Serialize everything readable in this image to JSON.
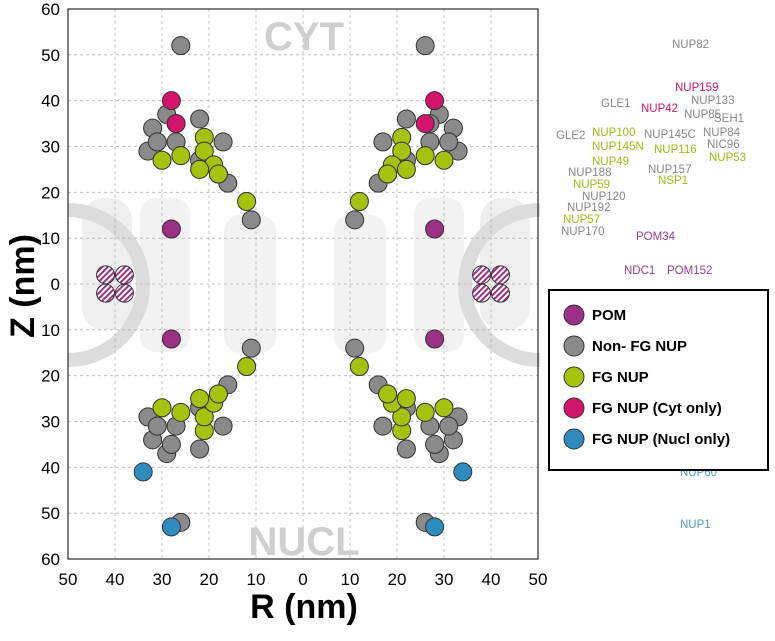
{
  "colors": {
    "pom": "#9c2f86",
    "non_fg": "#8a8a8a",
    "fg": "#a5c20d",
    "fg_cyt": "#d4146c",
    "fg_nucl": "#2e8bbd",
    "label_grey": "#888888",
    "label_green": "#9bbd13",
    "label_pink": "#d4146c",
    "label_purple": "#9c3d8f",
    "label_blue": "#4a9cc9"
  },
  "chart_data": {
    "type": "scatter",
    "xlabel": "R (nm)",
    "ylabel": "Z (nm)",
    "xlim": [
      -50,
      50
    ],
    "ylim": [
      -60,
      60
    ],
    "x_tick_labels": [
      "50",
      "40",
      "30",
      "20",
      "10",
      "0",
      "10",
      "20",
      "30",
      "40",
      "50"
    ],
    "y_tick_labels": [
      "60",
      "50",
      "40",
      "30",
      "20",
      "10",
      "0",
      "10",
      "20",
      "30",
      "40",
      "50",
      "60"
    ],
    "grid": true,
    "annotations": [
      "CYT",
      "NUCL"
    ],
    "series": [
      {
        "name": "POM",
        "color_key": "pom",
        "points": [
          [
            -28,
            12
          ],
          [
            -28,
            -12
          ],
          [
            28,
            12
          ],
          [
            28,
            -12
          ]
        ]
      },
      {
        "name": "Non- FG NUP",
        "color_key": "non_fg",
        "points": [
          [
            -26,
            52
          ],
          [
            -22,
            36
          ],
          [
            -29,
            37
          ],
          [
            -32,
            34
          ],
          [
            -27,
            35
          ],
          [
            -33,
            29
          ],
          [
            -31,
            31
          ],
          [
            -27,
            31
          ],
          [
            -22,
            27
          ],
          [
            -17,
            31
          ],
          [
            -18,
            24
          ],
          [
            -16,
            22
          ],
          [
            -11,
            14
          ],
          [
            -26,
            -52
          ],
          [
            -22,
            -36
          ],
          [
            -29,
            -37
          ],
          [
            -32,
            -34
          ],
          [
            -28,
            -35
          ],
          [
            -33,
            -29
          ],
          [
            -31,
            -31
          ],
          [
            -27,
            -31
          ],
          [
            -22,
            -27
          ],
          [
            -17,
            -31
          ],
          [
            -18,
            -24
          ],
          [
            -16,
            -22
          ],
          [
            -11,
            -14
          ],
          [
            26,
            52
          ],
          [
            22,
            36
          ],
          [
            29,
            37
          ],
          [
            32,
            34
          ],
          [
            27,
            35
          ],
          [
            33,
            29
          ],
          [
            31,
            31
          ],
          [
            27,
            31
          ],
          [
            22,
            27
          ],
          [
            17,
            31
          ],
          [
            18,
            24
          ],
          [
            16,
            22
          ],
          [
            11,
            14
          ],
          [
            26,
            -52
          ],
          [
            22,
            -36
          ],
          [
            29,
            -37
          ],
          [
            32,
            -34
          ],
          [
            28,
            -35
          ],
          [
            33,
            -29
          ],
          [
            31,
            -31
          ],
          [
            27,
            -31
          ],
          [
            22,
            -27
          ],
          [
            17,
            -31
          ],
          [
            18,
            -24
          ],
          [
            16,
            -22
          ],
          [
            11,
            -14
          ]
        ]
      },
      {
        "name": "FG NUP",
        "color_key": "fg",
        "points": [
          [
            -30,
            27
          ],
          [
            -26,
            28
          ],
          [
            -21,
            32
          ],
          [
            -21,
            29
          ],
          [
            -19,
            26
          ],
          [
            -22,
            25
          ],
          [
            -18,
            24
          ],
          [
            -12,
            18
          ],
          [
            -30,
            -27
          ],
          [
            -26,
            -28
          ],
          [
            -21,
            -32
          ],
          [
            -21,
            -29
          ],
          [
            -19,
            -26
          ],
          [
            -22,
            -25
          ],
          [
            -18,
            -24
          ],
          [
            -12,
            -18
          ],
          [
            30,
            27
          ],
          [
            26,
            28
          ],
          [
            21,
            32
          ],
          [
            21,
            29
          ],
          [
            19,
            26
          ],
          [
            22,
            25
          ],
          [
            18,
            24
          ],
          [
            12,
            18
          ],
          [
            30,
            -27
          ],
          [
            26,
            -28
          ],
          [
            21,
            -32
          ],
          [
            21,
            -29
          ],
          [
            19,
            -26
          ],
          [
            22,
            -25
          ],
          [
            18,
            -24
          ],
          [
            12,
            -18
          ]
        ]
      },
      {
        "name": "FG NUP (Cyt only)",
        "color_key": "fg_cyt",
        "points": [
          [
            -28,
            40
          ],
          [
            -27,
            35
          ],
          [
            28,
            40
          ],
          [
            26,
            35
          ]
        ]
      },
      {
        "name": "FG NUP (Nucl only)",
        "color_key": "fg_nucl",
        "points": [
          [
            -34,
            -41
          ],
          [
            -28,
            -53
          ],
          [
            34,
            -41
          ],
          [
            28,
            -53
          ]
        ]
      }
    ],
    "hatched_pom_points": [
      [
        -42,
        2
      ],
      [
        -38,
        2
      ],
      [
        -42,
        -2
      ],
      [
        -38,
        -2
      ],
      [
        38,
        2
      ],
      [
        42,
        2
      ],
      [
        38,
        -2
      ],
      [
        42,
        -2
      ]
    ]
  },
  "legend": {
    "items": [
      {
        "label": "POM",
        "color_key": "pom"
      },
      {
        "label": "Non- FG NUP",
        "color_key": "non_fg"
      },
      {
        "label": "FG NUP",
        "color_key": "fg"
      },
      {
        "label": "FG NUP (Cyt only)",
        "color_key": "fg_cyt"
      },
      {
        "label": "FG NUP (Nucl only)",
        "color_key": "fg_nucl"
      }
    ]
  },
  "nup_labels": [
    {
      "text": "NUP82",
      "color_key": "label_grey"
    },
    {
      "text": "NUP159",
      "color_key": "label_pink"
    },
    {
      "text": "GLE1",
      "color_key": "label_grey"
    },
    {
      "text": "NUP42",
      "color_key": "label_pink"
    },
    {
      "text": "NUP133",
      "color_key": "label_grey"
    },
    {
      "text": "NUP85",
      "color_key": "label_grey"
    },
    {
      "text": "SEH1",
      "color_key": "label_grey"
    },
    {
      "text": "GLE2",
      "color_key": "label_grey"
    },
    {
      "text": "NUP100",
      "color_key": "label_green"
    },
    {
      "text": "NUP145C",
      "color_key": "label_grey"
    },
    {
      "text": "NUP84",
      "color_key": "label_grey"
    },
    {
      "text": "NUP145N",
      "color_key": "label_green"
    },
    {
      "text": "NUP116",
      "color_key": "label_green"
    },
    {
      "text": "NIC96",
      "color_key": "label_grey"
    },
    {
      "text": "NUP53",
      "color_key": "label_green"
    },
    {
      "text": "NUP49",
      "color_key": "label_green"
    },
    {
      "text": "NUP188",
      "color_key": "label_grey"
    },
    {
      "text": "NUP157",
      "color_key": "label_grey"
    },
    {
      "text": "NSP1",
      "color_key": "label_green"
    },
    {
      "text": "NUP59",
      "color_key": "label_green"
    },
    {
      "text": "NUP120",
      "color_key": "label_grey"
    },
    {
      "text": "NUP192",
      "color_key": "label_grey"
    },
    {
      "text": "NUP57",
      "color_key": "label_green"
    },
    {
      "text": "NUP170",
      "color_key": "label_grey"
    },
    {
      "text": "POM34",
      "color_key": "label_purple"
    },
    {
      "text": "NDC1",
      "color_key": "label_purple"
    },
    {
      "text": "POM152",
      "color_key": "label_purple"
    },
    {
      "text": "NUP60",
      "color_key": "label_blue"
    },
    {
      "text": "NUP1",
      "color_key": "label_blue"
    }
  ]
}
